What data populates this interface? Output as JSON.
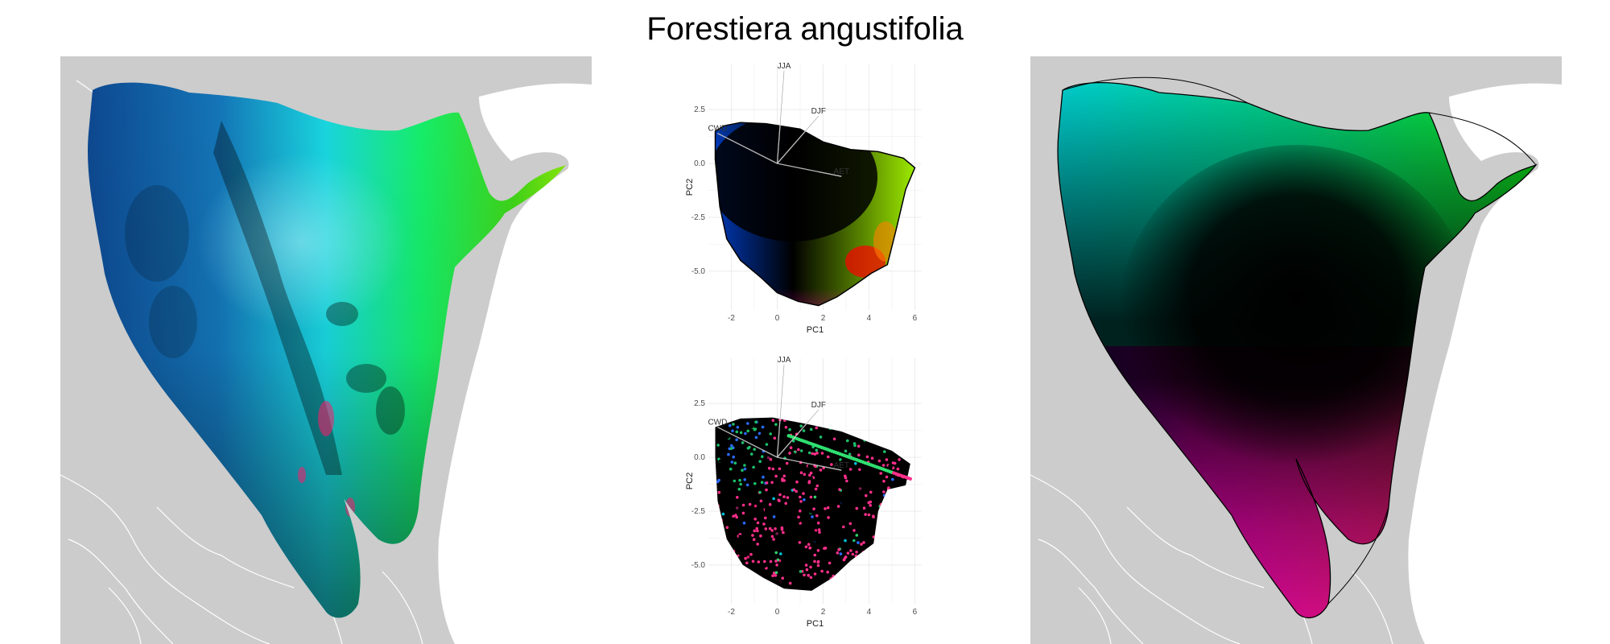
{
  "title": "Forestiera angustifolia",
  "colors": {
    "background": "#ffffff",
    "land": "#cccccc",
    "border": "#ffffff",
    "grid": "#ebebeb",
    "ramp_top_left": "#00e0ff",
    "ramp_top_right": "#2cff00",
    "ramp_center": "#000000",
    "ramp_left": "#0000ff",
    "ramp_bottom_right": "#ff0000",
    "ramp_bottom": "#ff1493"
  },
  "chart_data": [
    {
      "type": "map",
      "panel": "left",
      "description_shown": "species range colored by climate PCA scores, with terrain shading"
    },
    {
      "type": "scatter",
      "panel": "center-top",
      "xlabel": "PC1",
      "ylabel": "PC2",
      "xlim": [
        -3,
        6.3
      ],
      "ylim": [
        -6.8,
        4.6
      ],
      "xticks": [
        -2,
        0,
        2,
        4,
        6
      ],
      "yticks": [
        2.5,
        0.0,
        -2.5,
        -5.0
      ],
      "ytick_labels": [
        "2.5",
        "0.0",
        "-2.5",
        "-5.0"
      ],
      "xtick_labels": [
        "-2",
        "0",
        "2",
        "4",
        "6"
      ],
      "grid": true,
      "vectors": [
        {
          "label": "JJA",
          "x": 0.3,
          "y": 4.3
        },
        {
          "label": "DJF",
          "x": 1.8,
          "y": 2.2
        },
        {
          "label": "CWD",
          "x": -2.6,
          "y": 1.4
        },
        {
          "label": "AET",
          "x": 2.8,
          "y": -0.6
        }
      ],
      "hull": [
        [
          -2.7,
          1.5
        ],
        [
          -2.3,
          1.75
        ],
        [
          -1.6,
          1.9
        ],
        [
          -0.5,
          1.85
        ],
        [
          1.0,
          1.6
        ],
        [
          2.0,
          1.0
        ],
        [
          3.2,
          0.65
        ],
        [
          4.4,
          0.55
        ],
        [
          5.5,
          0.25
        ],
        [
          6.0,
          -0.2
        ],
        [
          5.6,
          -1.2
        ],
        [
          5.2,
          -3.0
        ],
        [
          4.8,
          -4.7
        ],
        [
          4.1,
          -5.1
        ],
        [
          3.3,
          -5.7
        ],
        [
          2.6,
          -6.2
        ],
        [
          1.8,
          -6.6
        ],
        [
          0.9,
          -6.4
        ],
        [
          0.0,
          -6.0
        ],
        [
          -0.7,
          -5.3
        ],
        [
          -1.6,
          -4.5
        ],
        [
          -2.2,
          -3.5
        ],
        [
          -2.5,
          -2.0
        ],
        [
          -2.7,
          0.2
        ]
      ]
    },
    {
      "type": "scatter",
      "panel": "center-bottom",
      "xlabel": "PC1",
      "ylabel": "PC2",
      "xlim": [
        -3,
        6.3
      ],
      "ylim": [
        -6.8,
        4.6
      ],
      "xticks": [
        -2,
        0,
        2,
        4,
        6
      ],
      "yticks": [
        2.5,
        0.0,
        -2.5,
        -5.0
      ],
      "ytick_labels": [
        "2.5",
        "0.0",
        "-2.5",
        "-5.0"
      ],
      "xtick_labels": [
        "-2",
        "0",
        "2",
        "4",
        "6"
      ],
      "grid": true,
      "vectors": [
        {
          "label": "JJA",
          "x": 0.3,
          "y": 4.3
        },
        {
          "label": "DJF",
          "x": 1.8,
          "y": 2.2
        },
        {
          "label": "CWD",
          "x": -2.6,
          "y": 1.4
        },
        {
          "label": "AET",
          "x": 2.8,
          "y": -0.6
        }
      ],
      "hull": [
        [
          -2.7,
          1.4
        ],
        [
          -1.6,
          1.8
        ],
        [
          -0.2,
          1.85
        ],
        [
          1.5,
          1.5
        ],
        [
          2.8,
          1.2
        ],
        [
          4.0,
          0.7
        ],
        [
          5.0,
          0.3
        ],
        [
          5.8,
          -0.3
        ],
        [
          5.6,
          -1.3
        ],
        [
          4.8,
          -1.5
        ],
        [
          4.4,
          -2.5
        ],
        [
          4.2,
          -4.0
        ],
        [
          3.2,
          -4.8
        ],
        [
          2.4,
          -5.6
        ],
        [
          1.5,
          -6.2
        ],
        [
          0.3,
          -6.1
        ],
        [
          -0.6,
          -5.6
        ],
        [
          -1.5,
          -5.0
        ],
        [
          -2.2,
          -3.8
        ],
        [
          -2.6,
          -2.0
        ],
        [
          -2.7,
          0.0
        ]
      ]
    },
    {
      "type": "map",
      "panel": "right",
      "description_shown": "smoothed climate color ramp over the species range outline"
    }
  ]
}
